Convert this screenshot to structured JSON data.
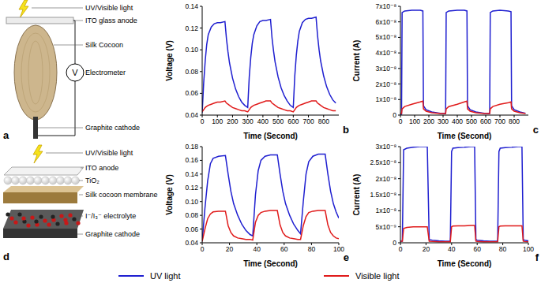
{
  "chart_data": [
    {
      "type": "line",
      "title": "b",
      "x_label": "Time (Second)",
      "y_label": "Voltage (V)",
      "x": [
        0,
        10,
        20,
        30,
        40,
        60,
        80,
        100,
        120,
        150,
        160,
        170,
        180,
        200,
        220,
        240,
        260,
        280,
        300,
        310,
        320,
        330,
        340,
        360,
        380,
        400,
        420,
        450,
        460,
        470,
        480,
        500,
        520,
        540,
        560,
        580,
        600,
        610,
        620,
        630,
        640,
        660,
        680,
        700,
        720,
        750,
        760,
        770,
        780,
        800,
        820,
        840,
        860,
        880
      ],
      "series": [
        {
          "name": "UV light",
          "color": "#1f1fd0",
          "values": [
            0.042,
            0.07,
            0.09,
            0.105,
            0.114,
            0.121,
            0.124,
            0.125,
            0.125,
            0.126,
            0.11,
            0.098,
            0.088,
            0.074,
            0.064,
            0.057,
            0.052,
            0.049,
            0.047,
            0.075,
            0.093,
            0.106,
            0.114,
            0.122,
            0.126,
            0.127,
            0.127,
            0.128,
            0.111,
            0.099,
            0.089,
            0.075,
            0.065,
            0.058,
            0.053,
            0.049,
            0.047,
            0.076,
            0.095,
            0.108,
            0.117,
            0.125,
            0.128,
            0.129,
            0.129,
            0.13,
            0.113,
            0.1,
            0.09,
            0.076,
            0.066,
            0.059,
            0.054,
            0.051
          ]
        },
        {
          "name": "Visible light",
          "color": "#e01a1a",
          "values": [
            0.043,
            0.045,
            0.047,
            0.048,
            0.049,
            0.05,
            0.051,
            0.052,
            0.052,
            0.053,
            0.051,
            0.05,
            0.049,
            0.047,
            0.046,
            0.045,
            0.044,
            0.044,
            0.043,
            0.045,
            0.047,
            0.048,
            0.049,
            0.05,
            0.051,
            0.052,
            0.053,
            0.053,
            0.051,
            0.05,
            0.049,
            0.047,
            0.046,
            0.045,
            0.044,
            0.044,
            0.043,
            0.045,
            0.047,
            0.048,
            0.049,
            0.05,
            0.051,
            0.052,
            0.053,
            0.053,
            0.051,
            0.05,
            0.049,
            0.047,
            0.046,
            0.045,
            0.044,
            0.044
          ]
        }
      ],
      "xlim": [
        0,
        900
      ],
      "xticks": [
        0,
        100,
        200,
        300,
        400,
        500,
        600,
        700,
        800
      ],
      "ylim": [
        0.04,
        0.14
      ],
      "yticks": [
        0.04,
        0.06,
        0.08,
        {
          "value": 0.1,
          "label": "0.10"
        },
        0.12,
        0.14
      ]
    },
    {
      "type": "line",
      "title": "c",
      "x_label": "Time (Second)",
      "y_label": "Current (A)",
      "x": [
        0,
        8,
        12,
        30,
        80,
        140,
        158,
        162,
        180,
        220,
        280,
        318,
        322,
        340,
        400,
        450,
        468,
        472,
        490,
        530,
        590,
        628,
        632,
        650,
        700,
        760,
        778,
        782,
        800,
        840,
        880
      ],
      "series": [
        {
          "name": "UV light",
          "color": "#1f1fd0",
          "values": [
            5e-10,
            5e-10,
            6.6e-08,
            6.7e-08,
            6.75e-08,
            6.75e-08,
            6.7e-08,
            6e-09,
            3.5e-09,
            2e-09,
            1.2e-09,
            1e-09,
            6.6e-08,
            6.7e-08,
            6.75e-08,
            6.75e-08,
            6.7e-08,
            6e-09,
            3.5e-09,
            2e-09,
            1.2e-09,
            1e-09,
            6.6e-08,
            6.7e-08,
            6.75e-08,
            6.7e-08,
            6.65e-08,
            6e-09,
            3.5e-09,
            2e-09,
            1.2e-09
          ]
        },
        {
          "name": "Visible light",
          "color": "#e01a1a",
          "values": [
            1e-09,
            1e-09,
            4e-09,
            5.5e-09,
            7e-09,
            8.5e-09,
            9e-09,
            4e-09,
            2.5e-09,
            1.5e-09,
            1e-09,
            1e-09,
            4e-09,
            5.5e-09,
            7e-09,
            8.5e-09,
            9e-09,
            4e-09,
            2.5e-09,
            1.5e-09,
            1e-09,
            1e-09,
            4e-09,
            5.5e-09,
            7e-09,
            8e-09,
            8.5e-09,
            4e-09,
            2.5e-09,
            1.5e-09,
            1e-09
          ]
        }
      ],
      "xlim": [
        0,
        900
      ],
      "xticks": [
        0,
        100,
        200,
        300,
        400,
        500,
        600,
        700,
        800
      ],
      "ylim": [
        0,
        7e-08
      ],
      "yticks": [
        0,
        {
          "value": 1e-08,
          "label": "1x10⁻⁸"
        },
        {
          "value": 2e-08,
          "label": "2x10⁻⁸"
        },
        {
          "value": 3e-08,
          "label": "3x10⁻⁸"
        },
        {
          "value": 4e-08,
          "label": "4x10⁻⁸"
        },
        {
          "value": 5e-08,
          "label": "5x10⁻⁸"
        },
        {
          "value": 6e-08,
          "label": "6x10⁻⁸"
        },
        {
          "value": 7e-08,
          "label": "7x10⁻⁸"
        }
      ]
    },
    {
      "type": "line",
      "title": "e",
      "x_label": "Time (Second)",
      "y_label": "Voltage (V)",
      "x": [
        0,
        2,
        4,
        6,
        8,
        12,
        17,
        19,
        21,
        23,
        26,
        29,
        32,
        35,
        37,
        39,
        41,
        43,
        46,
        50,
        55,
        57,
        59,
        61,
        64,
        67,
        70,
        72,
        74,
        76,
        78,
        81,
        85,
        90,
        92,
        94,
        96,
        98,
        100
      ],
      "series": [
        {
          "name": "UV light",
          "color": "#1f1fd0",
          "values": [
            0.042,
            0.09,
            0.13,
            0.155,
            0.163,
            0.166,
            0.167,
            0.14,
            0.115,
            0.097,
            0.08,
            0.067,
            0.058,
            0.052,
            0.05,
            0.11,
            0.145,
            0.16,
            0.166,
            0.168,
            0.168,
            0.14,
            0.115,
            0.097,
            0.08,
            0.067,
            0.058,
            0.053,
            0.1,
            0.14,
            0.158,
            0.166,
            0.169,
            0.169,
            0.14,
            0.115,
            0.097,
            0.085,
            0.076
          ]
        },
        {
          "name": "Visible light",
          "color": "#e01a1a",
          "values": [
            0.042,
            0.06,
            0.075,
            0.082,
            0.085,
            0.086,
            0.086,
            0.065,
            0.055,
            0.05,
            0.047,
            0.046,
            0.045,
            0.045,
            0.044,
            0.07,
            0.08,
            0.084,
            0.086,
            0.087,
            0.087,
            0.066,
            0.055,
            0.05,
            0.047,
            0.046,
            0.045,
            0.045,
            0.065,
            0.078,
            0.084,
            0.086,
            0.087,
            0.087,
            0.066,
            0.055,
            0.05,
            0.047,
            0.046
          ]
        }
      ],
      "xlim": [
        0,
        100
      ],
      "xticks": [
        0,
        20,
        40,
        60,
        80,
        100
      ],
      "ylim": [
        0.04,
        0.18
      ],
      "yticks": [
        0.04,
        0.06,
        0.08,
        {
          "value": 0.1,
          "label": "0.10"
        },
        0.12,
        0.14,
        0.16,
        0.18
      ]
    },
    {
      "type": "line",
      "title": "f",
      "x_label": "Time (Second)",
      "y_label": "Current (A)",
      "x": [
        0,
        1.5,
        2.5,
        5,
        10,
        15,
        20,
        21,
        22.5,
        25,
        30,
        35,
        39,
        40,
        41,
        45,
        50,
        55,
        58,
        59,
        60,
        65,
        70,
        76,
        77,
        78,
        82,
        87,
        92,
        95,
        96,
        97,
        100
      ],
      "series": [
        {
          "name": "UV light",
          "color": "#1f1fd0",
          "values": [
            5e-10,
            5e-10,
            2.9e-08,
            2.95e-08,
            2.98e-08,
            3e-08,
            3e-08,
            3e-08,
            1e-09,
            8e-10,
            6e-10,
            5e-10,
            5e-10,
            2.85e-08,
            2.95e-08,
            2.97e-08,
            2.98e-08,
            3e-08,
            3e-08,
            1e-09,
            8e-10,
            6e-10,
            5e-10,
            5e-10,
            2.85e-08,
            2.95e-08,
            2.97e-08,
            2.98e-08,
            3e-08,
            3e-08,
            1e-09,
            8e-10,
            6e-10
          ]
        },
        {
          "name": "Visible light",
          "color": "#e01a1a",
          "values": [
            5e-10,
            5e-10,
            4.5e-09,
            4.8e-09,
            5e-09,
            5e-09,
            5e-09,
            5e-09,
            5e-10,
            4e-10,
            3e-10,
            3e-10,
            3e-10,
            5e-09,
            5.2e-09,
            5.3e-09,
            5.3e-09,
            5.4e-09,
            5.4e-09,
            5e-10,
            4e-10,
            3e-10,
            3e-10,
            3e-10,
            5e-09,
            5.2e-09,
            5.3e-09,
            5.3e-09,
            5.3e-09,
            5.3e-09,
            5e-10,
            4e-10,
            3e-10
          ]
        }
      ],
      "xlim": [
        0,
        100
      ],
      "xticks": [
        0,
        20,
        40,
        60,
        80,
        100
      ],
      "ylim": [
        0,
        3e-08
      ],
      "yticks": [
        0,
        {
          "value": 5e-09,
          "label": "5x10⁻⁹"
        },
        {
          "value": 1e-08,
          "label": "1x10⁻⁸"
        },
        {
          "value": 1.5e-08,
          "label": "1.5x10⁻⁸"
        },
        {
          "value": 2e-08,
          "label": "2x10⁻⁸"
        },
        {
          "value": 2.5e-08,
          "label": "2.5x10⁻⁸"
        },
        {
          "value": 3e-08,
          "label": "3x10⁻⁸"
        }
      ]
    }
  ],
  "diagrams": [
    {
      "title": "a",
      "light": "UV/Visible light",
      "meter": "V",
      "labels": [
        "ITO glass anode",
        "Silk Cocoon",
        "Electrometer",
        "Graphite cathode"
      ]
    },
    {
      "title": "d",
      "light": "UV/Visible light",
      "labels": [
        "ITO anode",
        "TiO₂",
        "Silk cocoon membrane",
        "I⁻/I₃⁻ electrolyte",
        "Graphite cathode"
      ]
    }
  ]
}
